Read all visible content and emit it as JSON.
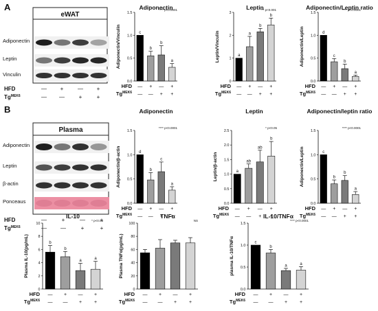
{
  "panels": [
    {
      "letter": "A",
      "blot_title": "eWAT",
      "rows": [
        "Adiponectin",
        "Leptin",
        "Vinculin"
      ]
    },
    {
      "letter": "B",
      "blot_title": "Plasma",
      "rows": [
        "Adiponectin",
        "Leptin",
        "β-actin",
        "Ponceaus"
      ]
    }
  ],
  "treatment_labels": {
    "hfd": "HFD",
    "tg": "Tg",
    "tg_sup": "MEK6"
  },
  "sign_rows": {
    "hfd": [
      "—",
      "+",
      "—",
      "+"
    ],
    "tg": [
      "—",
      "—",
      "+",
      "+"
    ]
  },
  "colors": {
    "bar": [
      "#000000",
      "#9e9e9e",
      "#7a7a7a",
      "#d4d4d4"
    ],
    "ponceau": "#ec8fa3"
  },
  "chart_data": [
    {
      "type": "bar",
      "title": "Adiponectin",
      "ylabel": "Adiponectin/Vinculin",
      "ylim": [
        0,
        1.5
      ],
      "yticks": [
        "0.0",
        "0.5",
        "1.0",
        "1.5"
      ],
      "values": [
        1.0,
        0.55,
        0.57,
        0.3
      ],
      "errors": [
        0,
        0.1,
        0.2,
        0.08
      ],
      "letters": [
        "c",
        "b",
        "b",
        "a"
      ],
      "pval": "**** p<0.0001"
    },
    {
      "type": "bar",
      "title": "Leptin",
      "ylabel": "Leptin/Vinculin",
      "ylim": [
        0,
        3
      ],
      "yticks": [
        "0",
        "1",
        "2",
        "3"
      ],
      "values": [
        1.0,
        1.5,
        2.15,
        2.45
      ],
      "errors": [
        0,
        0.45,
        0.15,
        0.3
      ],
      "letters": [
        "a",
        "a",
        "b",
        "b"
      ],
      "pval": "*** p<0.001"
    },
    {
      "type": "bar",
      "title": "Adiponectin/Leptin ratio",
      "ylabel": "Adiponectin/Leptin",
      "ylim": [
        0,
        1.5
      ],
      "yticks": [
        "0.0",
        "0.5",
        "1.0",
        "1.5"
      ],
      "values": [
        1.0,
        0.42,
        0.27,
        0.1
      ],
      "errors": [
        0,
        0.07,
        0.1,
        0.03
      ],
      "letters": [
        "d",
        "c",
        "b",
        "a"
      ],
      "pval": "**** p<0.0001"
    },
    {
      "type": "bar",
      "title": "Adiponectin",
      "ylabel": "Adiponectin/β-actin",
      "ylim": [
        0,
        1.5
      ],
      "yticks": [
        "0.0",
        "0.5",
        "1.0",
        "1.5"
      ],
      "values": [
        1.0,
        0.48,
        0.65,
        0.27
      ],
      "errors": [
        0,
        0.15,
        0.2,
        0.07
      ],
      "letters": [
        "d",
        "b",
        "c",
        "a"
      ],
      "pval": "**** p<0.0001"
    },
    {
      "type": "bar",
      "title": "Leptin",
      "ylabel": "Leptin/β-actin",
      "ylim": [
        0,
        2.5
      ],
      "yticks": [
        "0.0",
        "0.5",
        "1.0",
        "1.5",
        "2.0",
        "2.5"
      ],
      "values": [
        1.0,
        1.2,
        1.42,
        1.62
      ],
      "errors": [
        0,
        0.15,
        0.4,
        0.5
      ],
      "letters": [
        "a",
        "ab",
        "ab",
        "b"
      ],
      "pval": "* p<0.05"
    },
    {
      "type": "bar",
      "title": "Adiponectin/leptin ratio",
      "ylabel": "Adiponectin/Leptin",
      "ylim": [
        0,
        1.5
      ],
      "yticks": [
        "0.0",
        "0.5",
        "1.0",
        "1.5"
      ],
      "values": [
        1.0,
        0.4,
        0.47,
        0.18
      ],
      "errors": [
        0,
        0.08,
        0.1,
        0.06
      ],
      "letters": [
        "c",
        "b",
        "b",
        "a"
      ],
      "pval": "**** p<0.0001"
    },
    {
      "type": "bar",
      "title": "IL-10",
      "ylabel": "Plasma IL-10(pg/mL)",
      "ylim": [
        0,
        10
      ],
      "yticks": [
        "0",
        "2",
        "4",
        "6",
        "8",
        "10"
      ],
      "values": [
        5.6,
        4.9,
        2.8,
        3.0
      ],
      "errors": [
        1.0,
        0.8,
        1.1,
        1.2
      ],
      "letters": [
        "b",
        "b",
        "a",
        "a"
      ],
      "pval": "* p<0.05"
    },
    {
      "type": "bar",
      "title": "TNFα",
      "ylabel": "Plasma TNFα(pg/mL)",
      "ylim": [
        0,
        100
      ],
      "yticks": [
        "0",
        "20",
        "40",
        "60",
        "80",
        "100"
      ],
      "values": [
        55,
        62,
        70,
        70
      ],
      "errors": [
        5,
        13,
        4,
        8
      ],
      "letters": [
        "",
        "",
        "",
        ""
      ],
      "pval": "NS"
    },
    {
      "type": "bar",
      "title": "IL-10/TNFα",
      "ylabel": "plasma IL-10/TNFα",
      "ylim": [
        0,
        1.5
      ],
      "yticks": [
        "0.0",
        "0.5",
        "1.0",
        "1.5"
      ],
      "values": [
        1.0,
        0.82,
        0.42,
        0.43
      ],
      "errors": [
        0,
        0.08,
        0.05,
        0.08
      ],
      "letters": [
        "c",
        "b",
        "a",
        "a"
      ],
      "pval": "**** p<0.0001"
    }
  ]
}
